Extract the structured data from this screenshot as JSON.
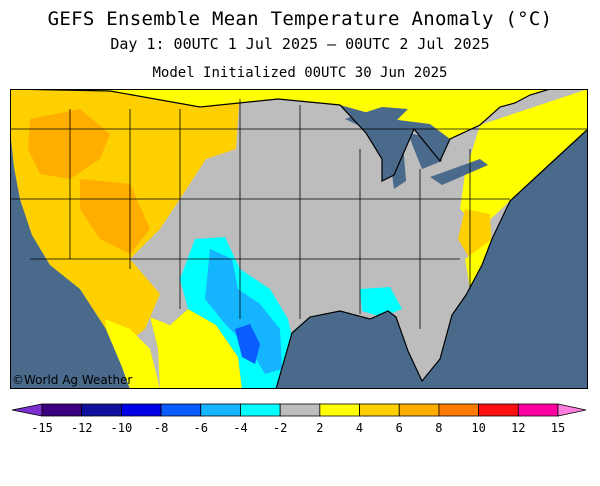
{
  "header": {
    "title": "GEFS Ensemble Mean Temperature Anomaly (°C)",
    "subtitle": "Day 1: 00UTC 1 Jul 2025 — 00UTC 2 Jul 2025",
    "initialized": "Model Initialized 00UTC 30 Jun 2025"
  },
  "map": {
    "region": "Contiguous United States",
    "copyright": "©World Ag Weather",
    "ocean_color": "#4a6a8c",
    "lakes_color": "#4a6a8c",
    "outside_color": "#bdbdbd"
  },
  "legend": {
    "ticks": [
      "-15",
      "-12",
      "-10",
      "-8",
      "-6",
      "-4",
      "-2",
      "2",
      "4",
      "6",
      "8",
      "10",
      "12",
      "15"
    ],
    "colors": [
      "#7b2fd0",
      "#3a007f",
      "#1010a0",
      "#0000e8",
      "#0a5cff",
      "#15b4ff",
      "#00ffff",
      "#bdbdbd",
      "#ffff00",
      "#ffd000",
      "#ffae00",
      "#ff7a00",
      "#ff1010",
      "#ff00a0",
      "#ff7fe0"
    ]
  }
}
